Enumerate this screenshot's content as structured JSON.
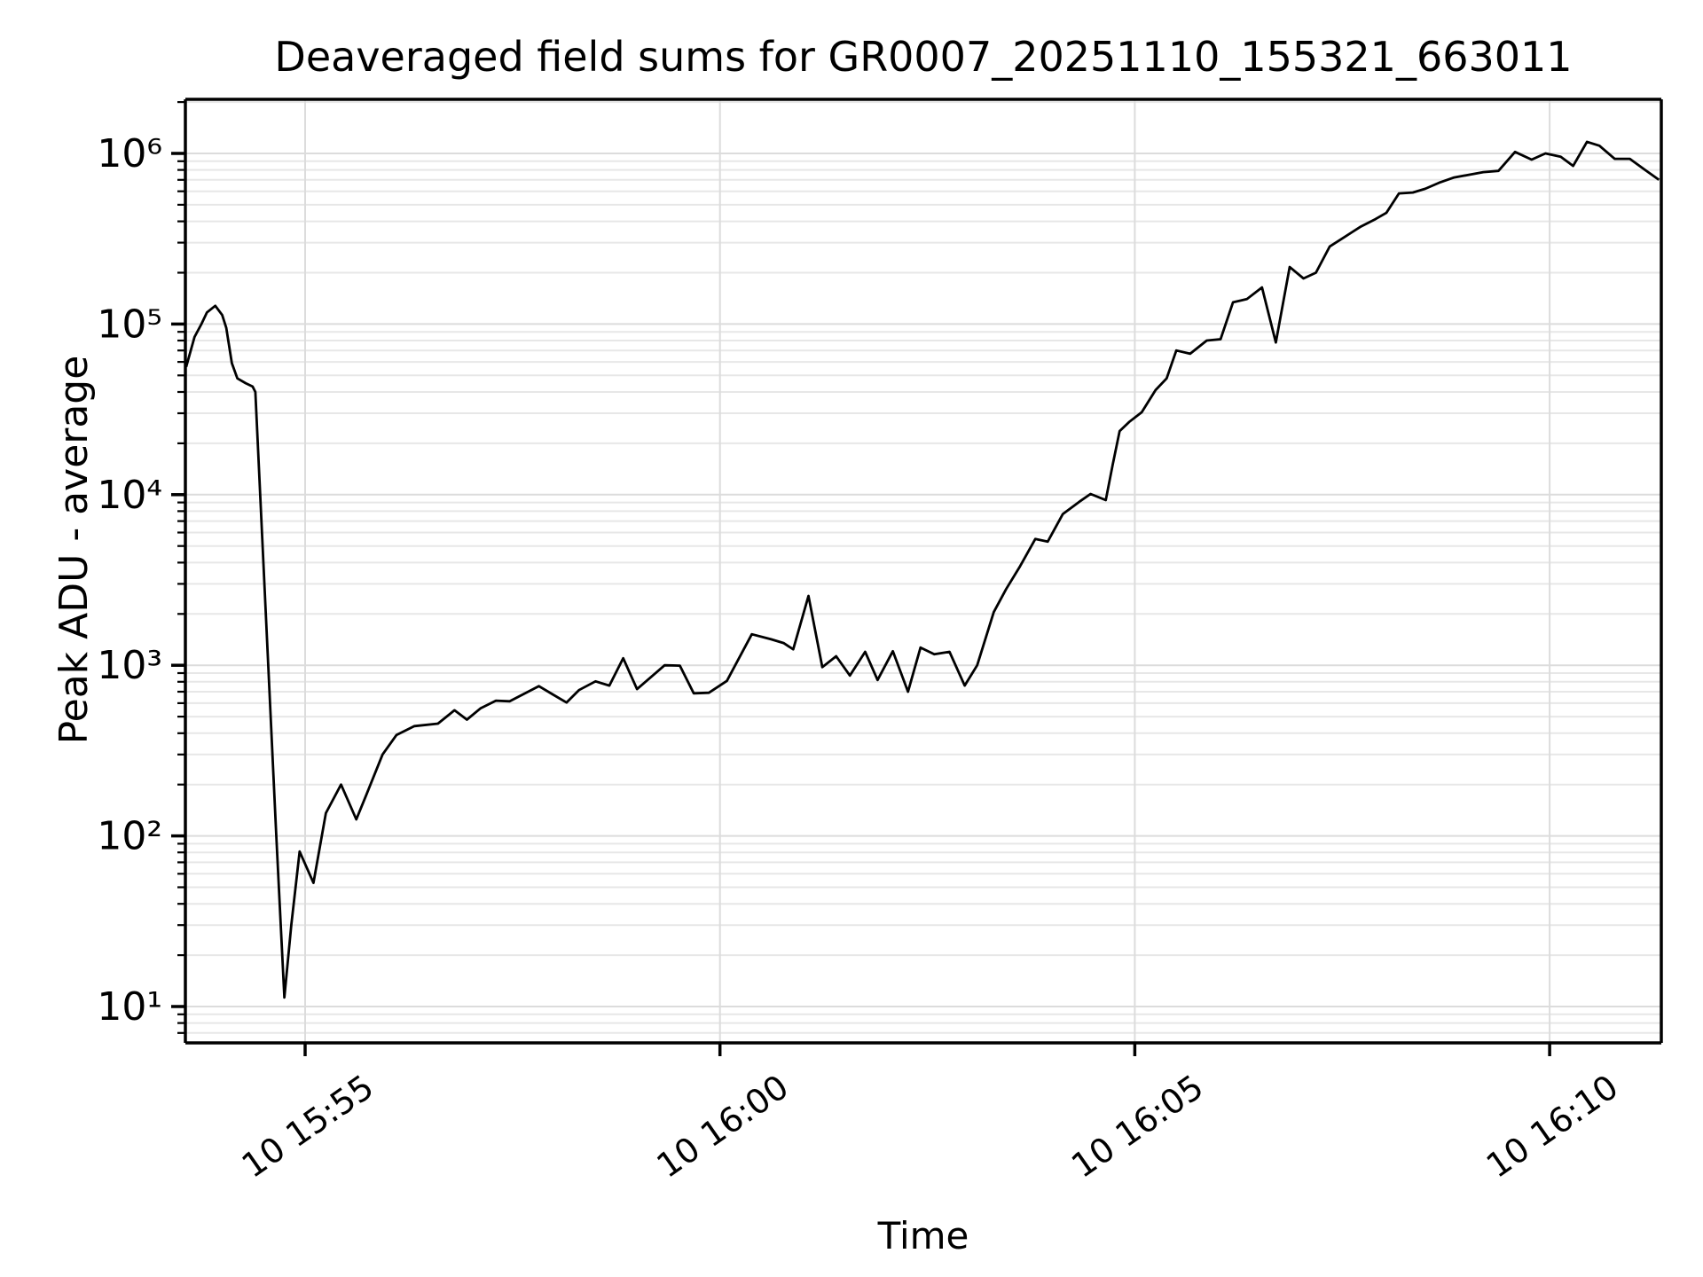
{
  "chart_data": {
    "type": "line",
    "title": "Deaveraged field sums for GR0007_20251110_155321_663011",
    "xlabel": "Time",
    "ylabel": "Peak ADU - average",
    "background_color": "#ffffff",
    "line_color": "#000000",
    "grid": {
      "major": true,
      "minor": true,
      "major_color": "#dcdcdc",
      "minor_color": "#e7e7e7"
    },
    "x_axis": {
      "unit": "seconds since 10 Nov 15:53:30",
      "tick_t": [
        90,
        390,
        690,
        990
      ],
      "tick_labels": [
        "10 15:55",
        "10 16:00",
        "10 16:05",
        "10 16:10"
      ],
      "label_rotation_deg": 35,
      "range_t": [
        4,
        1071
      ]
    },
    "y_axis": {
      "scale": "log",
      "tick_values": [
        10,
        100,
        1000,
        10000,
        100000,
        1000000
      ],
      "tick_labels": [
        "10¹",
        "10²",
        "10³",
        "10⁴",
        "10⁵",
        "10⁶"
      ],
      "range": [
        6.1,
        2100000
      ]
    },
    "series": [
      {
        "name": "deaveraged-field-sum",
        "points": [
          [
            4,
            56000
          ],
          [
            10,
            84000
          ],
          [
            15,
            100000
          ],
          [
            19,
            117000
          ],
          [
            25,
            128000
          ],
          [
            30,
            113000
          ],
          [
            33,
            95000
          ],
          [
            37,
            59000
          ],
          [
            41,
            48000
          ],
          [
            47,
            45000
          ],
          [
            52,
            43000
          ],
          [
            54,
            40000
          ],
          [
            59,
            5500
          ],
          [
            64,
            760
          ],
          [
            69,
            105
          ],
          [
            75,
            11.3
          ],
          [
            80,
            30
          ],
          [
            86,
            81
          ],
          [
            96,
            53
          ],
          [
            105,
            136
          ],
          [
            116,
            200
          ],
          [
            127,
            125
          ],
          [
            134,
            172
          ],
          [
            146,
            300
          ],
          [
            156,
            390
          ],
          [
            169,
            440
          ],
          [
            186,
            455
          ],
          [
            198,
            545
          ],
          [
            207,
            480
          ],
          [
            217,
            560
          ],
          [
            228,
            620
          ],
          [
            238,
            615
          ],
          [
            259,
            755
          ],
          [
            269,
            675
          ],
          [
            279,
            605
          ],
          [
            288,
            715
          ],
          [
            300,
            805
          ],
          [
            310,
            760
          ],
          [
            320,
            1100
          ],
          [
            330,
            725
          ],
          [
            341,
            865
          ],
          [
            350,
            1000
          ],
          [
            361,
            995
          ],
          [
            371,
            685
          ],
          [
            382,
            690
          ],
          [
            395,
            810
          ],
          [
            413,
            1520
          ],
          [
            427,
            1420
          ],
          [
            436,
            1350
          ],
          [
            443,
            1240
          ],
          [
            454,
            2550
          ],
          [
            464,
            975
          ],
          [
            474,
            1130
          ],
          [
            484,
            870
          ],
          [
            495,
            1200
          ],
          [
            504,
            820
          ],
          [
            515,
            1210
          ],
          [
            526,
            700
          ],
          [
            535,
            1270
          ],
          [
            545,
            1160
          ],
          [
            556,
            1200
          ],
          [
            567,
            760
          ],
          [
            576,
            1000
          ],
          [
            588,
            2050
          ],
          [
            597,
            2800
          ],
          [
            607,
            3800
          ],
          [
            618,
            5500
          ],
          [
            627,
            5300
          ],
          [
            638,
            7700
          ],
          [
            650,
            9100
          ],
          [
            658,
            10100
          ],
          [
            669,
            9300
          ],
          [
            674,
            15000
          ],
          [
            679,
            23600
          ],
          [
            686,
            26700
          ],
          [
            695,
            30400
          ],
          [
            705,
            41000
          ],
          [
            713,
            48000
          ],
          [
            720,
            70000
          ],
          [
            730,
            67000
          ],
          [
            742,
            80000
          ],
          [
            752,
            81500
          ],
          [
            761,
            134000
          ],
          [
            771,
            140000
          ],
          [
            782,
            164000
          ],
          [
            792,
            78000
          ],
          [
            802,
            216000
          ],
          [
            812,
            185000
          ],
          [
            821,
            200000
          ],
          [
            831,
            285000
          ],
          [
            842,
            325000
          ],
          [
            853,
            371000
          ],
          [
            864,
            412000
          ],
          [
            872,
            449000
          ],
          [
            881,
            583000
          ],
          [
            891,
            590000
          ],
          [
            900,
            620000
          ],
          [
            910,
            673000
          ],
          [
            921,
            723000
          ],
          [
            932,
            750000
          ],
          [
            942,
            777000
          ],
          [
            953,
            790000
          ],
          [
            965,
            1020000
          ],
          [
            977,
            920000
          ],
          [
            987,
            1000000
          ],
          [
            998,
            955000
          ],
          [
            1007,
            845000
          ],
          [
            1017,
            1170000
          ],
          [
            1026,
            1110000
          ],
          [
            1037,
            930000
          ],
          [
            1048,
            930000
          ],
          [
            1059,
            800000
          ],
          [
            1069,
            700000
          ]
        ]
      }
    ]
  }
}
